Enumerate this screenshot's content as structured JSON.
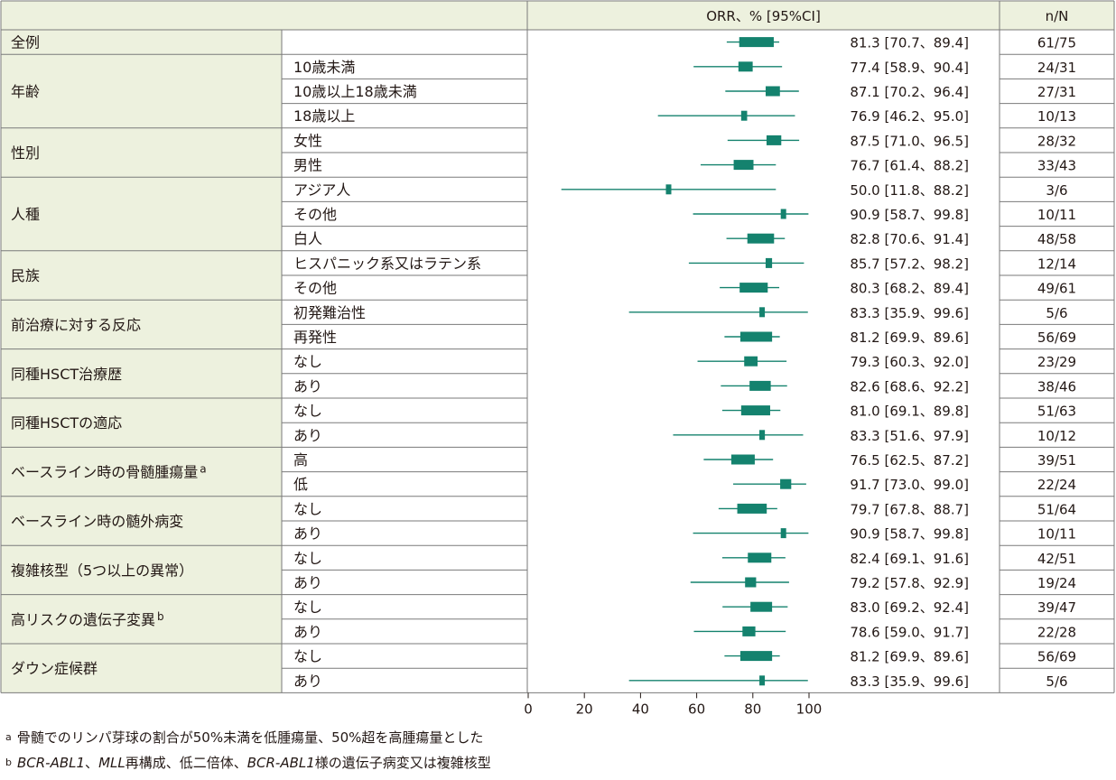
{
  "header": {
    "orr_label": "ORR、% [95%CI]",
    "n_label": "n/N"
  },
  "chart_data": {
    "type": "forest",
    "x_axis": {
      "ticks": [
        0,
        20,
        40,
        60,
        80,
        100
      ],
      "range": [
        0,
        100
      ]
    },
    "marker_color": "#14826E",
    "groups": [
      {
        "label": "全例",
        "sup": "",
        "rows": [
          {
            "sub": "",
            "orr": 81.3,
            "lo": 70.7,
            "hi": 89.4,
            "ci_text": "81.3 [70.7、89.4]",
            "n": "61/75"
          }
        ]
      },
      {
        "label": "年齢",
        "sup": "",
        "rows": [
          {
            "sub": "10歳未満",
            "orr": 77.4,
            "lo": 58.9,
            "hi": 90.4,
            "ci_text": "77.4 [58.9、90.4]",
            "n": "24/31"
          },
          {
            "sub": "10歳以上18歳未満",
            "orr": 87.1,
            "lo": 70.2,
            "hi": 96.4,
            "ci_text": "87.1 [70.2、96.4]",
            "n": "27/31"
          },
          {
            "sub": "18歳以上",
            "orr": 76.9,
            "lo": 46.2,
            "hi": 95.0,
            "ci_text": "76.9 [46.2、95.0]",
            "n": "10/13"
          }
        ]
      },
      {
        "label": "性別",
        "sup": "",
        "rows": [
          {
            "sub": "女性",
            "orr": 87.5,
            "lo": 71.0,
            "hi": 96.5,
            "ci_text": "87.5 [71.0、96.5]",
            "n": "28/32"
          },
          {
            "sub": "男性",
            "orr": 76.7,
            "lo": 61.4,
            "hi": 88.2,
            "ci_text": "76.7 [61.4、88.2]",
            "n": "33/43"
          }
        ]
      },
      {
        "label": "人種",
        "sup": "",
        "rows": [
          {
            "sub": "アジア人",
            "orr": 50.0,
            "lo": 11.8,
            "hi": 88.2,
            "ci_text": "50.0 [11.8、88.2]",
            "n": "3/6"
          },
          {
            "sub": "その他",
            "orr": 90.9,
            "lo": 58.7,
            "hi": 99.8,
            "ci_text": "90.9 [58.7、99.8]",
            "n": "10/11"
          },
          {
            "sub": "白人",
            "orr": 82.8,
            "lo": 70.6,
            "hi": 91.4,
            "ci_text": "82.8 [70.6、91.4]",
            "n": "48/58"
          }
        ]
      },
      {
        "label": "民族",
        "sup": "",
        "rows": [
          {
            "sub": "ヒスパニック系又はラテン系",
            "orr": 85.7,
            "lo": 57.2,
            "hi": 98.2,
            "ci_text": "85.7 [57.2、98.2]",
            "n": "12/14"
          },
          {
            "sub": "その他",
            "orr": 80.3,
            "lo": 68.2,
            "hi": 89.4,
            "ci_text": "80.3 [68.2、89.4]",
            "n": "49/61"
          }
        ]
      },
      {
        "label": "前治療に対する反応",
        "sup": "",
        "rows": [
          {
            "sub": "初発難治性",
            "orr": 83.3,
            "lo": 35.9,
            "hi": 99.6,
            "ci_text": "83.3 [35.9、99.6]",
            "n": "5/6"
          },
          {
            "sub": "再発性",
            "orr": 81.2,
            "lo": 69.9,
            "hi": 89.6,
            "ci_text": "81.2 [69.9、89.6]",
            "n": "56/69"
          }
        ]
      },
      {
        "label": "同種HSCT治療歴",
        "sup": "",
        "rows": [
          {
            "sub": "なし",
            "orr": 79.3,
            "lo": 60.3,
            "hi": 92.0,
            "ci_text": "79.3 [60.3、92.0]",
            "n": "23/29"
          },
          {
            "sub": "あり",
            "orr": 82.6,
            "lo": 68.6,
            "hi": 92.2,
            "ci_text": "82.6 [68.6、92.2]",
            "n": "38/46"
          }
        ]
      },
      {
        "label": "同種HSCTの適応",
        "sup": "",
        "rows": [
          {
            "sub": "なし",
            "orr": 81.0,
            "lo": 69.1,
            "hi": 89.8,
            "ci_text": "81.0 [69.1、89.8]",
            "n": "51/63"
          },
          {
            "sub": "あり",
            "orr": 83.3,
            "lo": 51.6,
            "hi": 97.9,
            "ci_text": "83.3 [51.6、97.9]",
            "n": "10/12"
          }
        ]
      },
      {
        "label": "ベースライン時の骨髄腫瘍量",
        "sup": "a",
        "rows": [
          {
            "sub": "高",
            "orr": 76.5,
            "lo": 62.5,
            "hi": 87.2,
            "ci_text": "76.5 [62.5、87.2]",
            "n": "39/51"
          },
          {
            "sub": "低",
            "orr": 91.7,
            "lo": 73.0,
            "hi": 99.0,
            "ci_text": "91.7 [73.0、99.0]",
            "n": "22/24"
          }
        ]
      },
      {
        "label": "ベースライン時の髄外病変",
        "sup": "",
        "rows": [
          {
            "sub": "なし",
            "orr": 79.7,
            "lo": 67.8,
            "hi": 88.7,
            "ci_text": "79.7 [67.8、88.7]",
            "n": "51/64"
          },
          {
            "sub": "あり",
            "orr": 90.9,
            "lo": 58.7,
            "hi": 99.8,
            "ci_text": "90.9 [58.7、99.8]",
            "n": "10/11"
          }
        ]
      },
      {
        "label": "複雑核型（5つ以上の異常）",
        "sup": "",
        "rows": [
          {
            "sub": "なし",
            "orr": 82.4,
            "lo": 69.1,
            "hi": 91.6,
            "ci_text": "82.4 [69.1、91.6]",
            "n": "42/51"
          },
          {
            "sub": "あり",
            "orr": 79.2,
            "lo": 57.8,
            "hi": 92.9,
            "ci_text": "79.2 [57.8、92.9]",
            "n": "19/24"
          }
        ]
      },
      {
        "label": "高リスクの遺伝子変異",
        "sup": "b",
        "rows": [
          {
            "sub": "なし",
            "orr": 83.0,
            "lo": 69.2,
            "hi": 92.4,
            "ci_text": "83.0 [69.2、92.4]",
            "n": "39/47"
          },
          {
            "sub": "あり",
            "orr": 78.6,
            "lo": 59.0,
            "hi": 91.7,
            "ci_text": "78.6 [59.0、91.7]",
            "n": "22/28"
          }
        ]
      },
      {
        "label": "ダウン症候群",
        "sup": "",
        "rows": [
          {
            "sub": "なし",
            "orr": 81.2,
            "lo": 69.9,
            "hi": 89.6,
            "ci_text": "81.2 [69.9、89.6]",
            "n": "56/69"
          },
          {
            "sub": "あり",
            "orr": 83.3,
            "lo": 35.9,
            "hi": 99.6,
            "ci_text": "83.3 [35.9、99.6]",
            "n": "5/6"
          }
        ]
      }
    ]
  },
  "footnotes": {
    "a_mark": "a",
    "a_text": "骨髄でのリンパ芽球の割合が50%未満を低腫瘍量、50%超を高腫瘍量とした",
    "b_mark": "b",
    "b_t1": "BCR-ABL1",
    "b_t2": "、",
    "b_t3": "MLL",
    "b_t4": "再構成、低二倍体、",
    "b_t5": "BCR-ABL1",
    "b_t6": "様の遺伝子病変又は複雑核型"
  }
}
